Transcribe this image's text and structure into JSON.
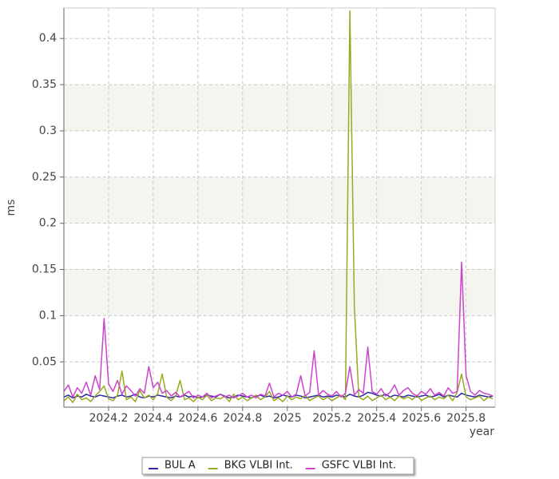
{
  "chart_data": {
    "type": "line",
    "x_label": "year",
    "y_label": "ms",
    "xlim": [
      2024.0,
      2025.93
    ],
    "ylim": [
      0.001,
      0.433
    ],
    "xticks": [
      2024.2,
      2024.4,
      2024.6,
      2024.8,
      2025,
      2025.2,
      2025.4,
      2025.6,
      2025.8
    ],
    "yticks": [
      0.05,
      0.1,
      0.15,
      0.2,
      0.25,
      0.3,
      0.35,
      0.4
    ],
    "grid": true,
    "band_color": "#f5f5f0",
    "legend": "bottom",
    "x": [
      2024.0,
      2024.02,
      2024.04,
      2024.06,
      2024.08,
      2024.1,
      2024.12,
      2024.14,
      2024.16,
      2024.18,
      2024.2,
      2024.22,
      2024.24,
      2024.26,
      2024.28,
      2024.3,
      2024.32,
      2024.34,
      2024.36,
      2024.38,
      2024.4,
      2024.42,
      2024.44,
      2024.46,
      2024.48,
      2024.5,
      2024.52,
      2024.54,
      2024.56,
      2024.58,
      2024.6,
      2024.62,
      2024.64,
      2024.66,
      2024.68,
      2024.7,
      2024.72,
      2024.74,
      2024.76,
      2024.78,
      2024.8,
      2024.82,
      2024.84,
      2024.86,
      2024.88,
      2024.9,
      2024.92,
      2024.94,
      2024.96,
      2024.98,
      2025.0,
      2025.02,
      2025.04,
      2025.06,
      2025.08,
      2025.1,
      2025.12,
      2025.14,
      2025.16,
      2025.18,
      2025.2,
      2025.22,
      2025.24,
      2025.26,
      2025.28,
      2025.3,
      2025.32,
      2025.34,
      2025.36,
      2025.38,
      2025.4,
      2025.42,
      2025.44,
      2025.46,
      2025.48,
      2025.5,
      2025.52,
      2025.54,
      2025.56,
      2025.58,
      2025.6,
      2025.62,
      2025.64,
      2025.66,
      2025.68,
      2025.7,
      2025.72,
      2025.74,
      2025.76,
      2025.78,
      2025.8,
      2025.82,
      2025.84,
      2025.86,
      2025.88,
      2025.9,
      2025.92
    ],
    "series": [
      {
        "name": "BUL A",
        "color": "#2a2aa8",
        "values": [
          0.012,
          0.014,
          0.011,
          0.013,
          0.012,
          0.015,
          0.013,
          0.012,
          0.014,
          0.013,
          0.012,
          0.011,
          0.013,
          0.014,
          0.012,
          0.013,
          0.015,
          0.012,
          0.011,
          0.013,
          0.012,
          0.014,
          0.013,
          0.012,
          0.011,
          0.013,
          0.012,
          0.014,
          0.012,
          0.013,
          0.011,
          0.012,
          0.014,
          0.013,
          0.012,
          0.015,
          0.013,
          0.011,
          0.012,
          0.014,
          0.013,
          0.012,
          0.011,
          0.013,
          0.014,
          0.012,
          0.013,
          0.011,
          0.012,
          0.014,
          0.013,
          0.012,
          0.014,
          0.013,
          0.011,
          0.012,
          0.013,
          0.014,
          0.012,
          0.013,
          0.012,
          0.014,
          0.013,
          0.012,
          0.015,
          0.013,
          0.012,
          0.014,
          0.017,
          0.016,
          0.014,
          0.013,
          0.015,
          0.012,
          0.014,
          0.013,
          0.012,
          0.014,
          0.013,
          0.012,
          0.013,
          0.014,
          0.012,
          0.013,
          0.015,
          0.012,
          0.014,
          0.013,
          0.012,
          0.016,
          0.014,
          0.013,
          0.012,
          0.014,
          0.013,
          0.012,
          0.013
        ]
      },
      {
        "name": "BKG VLBI Int.",
        "color": "#99a822",
        "values": [
          0.008,
          0.012,
          0.006,
          0.015,
          0.009,
          0.011,
          0.007,
          0.013,
          0.018,
          0.024,
          0.01,
          0.008,
          0.014,
          0.04,
          0.009,
          0.012,
          0.007,
          0.019,
          0.011,
          0.014,
          0.009,
          0.016,
          0.037,
          0.012,
          0.008,
          0.013,
          0.03,
          0.009,
          0.011,
          0.007,
          0.012,
          0.009,
          0.014,
          0.008,
          0.011,
          0.01,
          0.013,
          0.007,
          0.015,
          0.009,
          0.012,
          0.008,
          0.011,
          0.014,
          0.009,
          0.012,
          0.018,
          0.008,
          0.011,
          0.007,
          0.013,
          0.009,
          0.012,
          0.01,
          0.014,
          0.008,
          0.011,
          0.013,
          0.009,
          0.012,
          0.008,
          0.011,
          0.014,
          0.009,
          0.43,
          0.11,
          0.012,
          0.009,
          0.013,
          0.008,
          0.011,
          0.014,
          0.009,
          0.012,
          0.008,
          0.013,
          0.01,
          0.012,
          0.009,
          0.014,
          0.008,
          0.011,
          0.013,
          0.009,
          0.012,
          0.01,
          0.014,
          0.008,
          0.017,
          0.037,
          0.012,
          0.009,
          0.011,
          0.013,
          0.008,
          0.012,
          0.01
        ]
      },
      {
        "name": "GSFC VLBI Int.",
        "color": "#cc44cc",
        "values": [
          0.018,
          0.025,
          0.012,
          0.022,
          0.016,
          0.028,
          0.014,
          0.035,
          0.02,
          0.097,
          0.026,
          0.018,
          0.03,
          0.015,
          0.024,
          0.019,
          0.013,
          0.021,
          0.016,
          0.045,
          0.022,
          0.028,
          0.016,
          0.019,
          0.013,
          0.017,
          0.012,
          0.015,
          0.018,
          0.011,
          0.014,
          0.012,
          0.016,
          0.011,
          0.013,
          0.015,
          0.012,
          0.014,
          0.011,
          0.013,
          0.016,
          0.012,
          0.014,
          0.011,
          0.015,
          0.013,
          0.027,
          0.012,
          0.016,
          0.014,
          0.018,
          0.012,
          0.015,
          0.035,
          0.013,
          0.017,
          0.062,
          0.014,
          0.019,
          0.015,
          0.013,
          0.018,
          0.012,
          0.016,
          0.045,
          0.014,
          0.02,
          0.016,
          0.066,
          0.018,
          0.015,
          0.021,
          0.013,
          0.017,
          0.025,
          0.014,
          0.019,
          0.022,
          0.016,
          0.013,
          0.018,
          0.015,
          0.021,
          0.014,
          0.017,
          0.013,
          0.022,
          0.016,
          0.018,
          0.158,
          0.035,
          0.018,
          0.014,
          0.019,
          0.016,
          0.015,
          0.013
        ]
      }
    ]
  }
}
